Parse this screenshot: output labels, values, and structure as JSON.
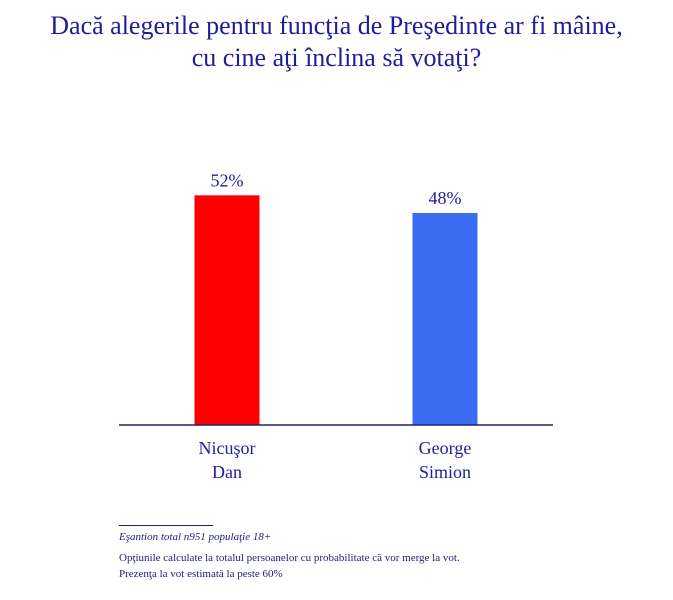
{
  "chart_data": {
    "type": "bar",
    "title_lines": [
      "Dacă alegerile pentru funcţia de Preşedinte ar fi mâine,",
      "cu cine aţi înclina să votaţi?"
    ],
    "categories": [
      [
        "Nicuşor",
        "Dan"
      ],
      [
        "George",
        "Simion"
      ]
    ],
    "series": [
      {
        "values": [
          52,
          48
        ],
        "colors": [
          "#ff0000",
          "#3a6cf4"
        ]
      }
    ],
    "value_labels": [
      "52%",
      "48%"
    ],
    "unit": "%",
    "ylim": [
      0,
      60
    ],
    "grid": false,
    "legend": "none"
  },
  "footnotes": {
    "sample": "Eşantion total n951 populaţie 18+",
    "line1": "Opţiunile calculate la totalul persoanelor cu probabilitate că vor merge la vot.",
    "line2": "Prezenţa la vot estimată la peste 60%"
  },
  "colors": {
    "text": "#1e1e96",
    "axis": "#1e1e78"
  }
}
